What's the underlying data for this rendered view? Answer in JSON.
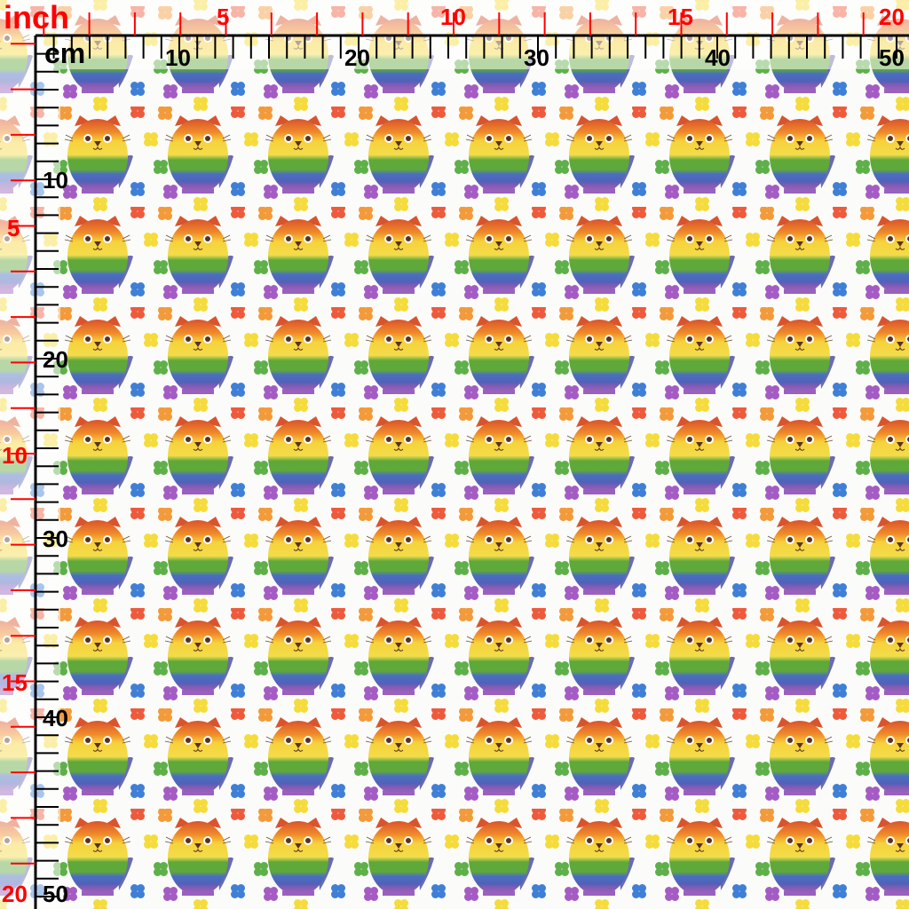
{
  "ruler": {
    "inch_unit": "inch",
    "cm_unit": "cm",
    "inch_color": "#ff0000",
    "cm_color": "#000000",
    "top_inch_labels": [
      "5",
      "10",
      "15",
      "20"
    ],
    "top_cm_labels": [
      "10",
      "20",
      "30",
      "40",
      "50"
    ],
    "left_inch_labels": [
      "5",
      "10",
      "15",
      "20"
    ],
    "left_cm_labels": [
      "10",
      "20",
      "30",
      "40",
      "50"
    ]
  },
  "pattern": {
    "motif": "rainbow-cat",
    "stripe_colors": [
      "#d9542c",
      "#f08a2a",
      "#f6d23a",
      "#5fa83a",
      "#4a6fc0",
      "#8a5bb5"
    ],
    "flower_colors": [
      "#ee5a3c",
      "#f39a3a",
      "#f5dc3c",
      "#5fb04a",
      "#3f7fd6",
      "#a45cc4"
    ]
  }
}
